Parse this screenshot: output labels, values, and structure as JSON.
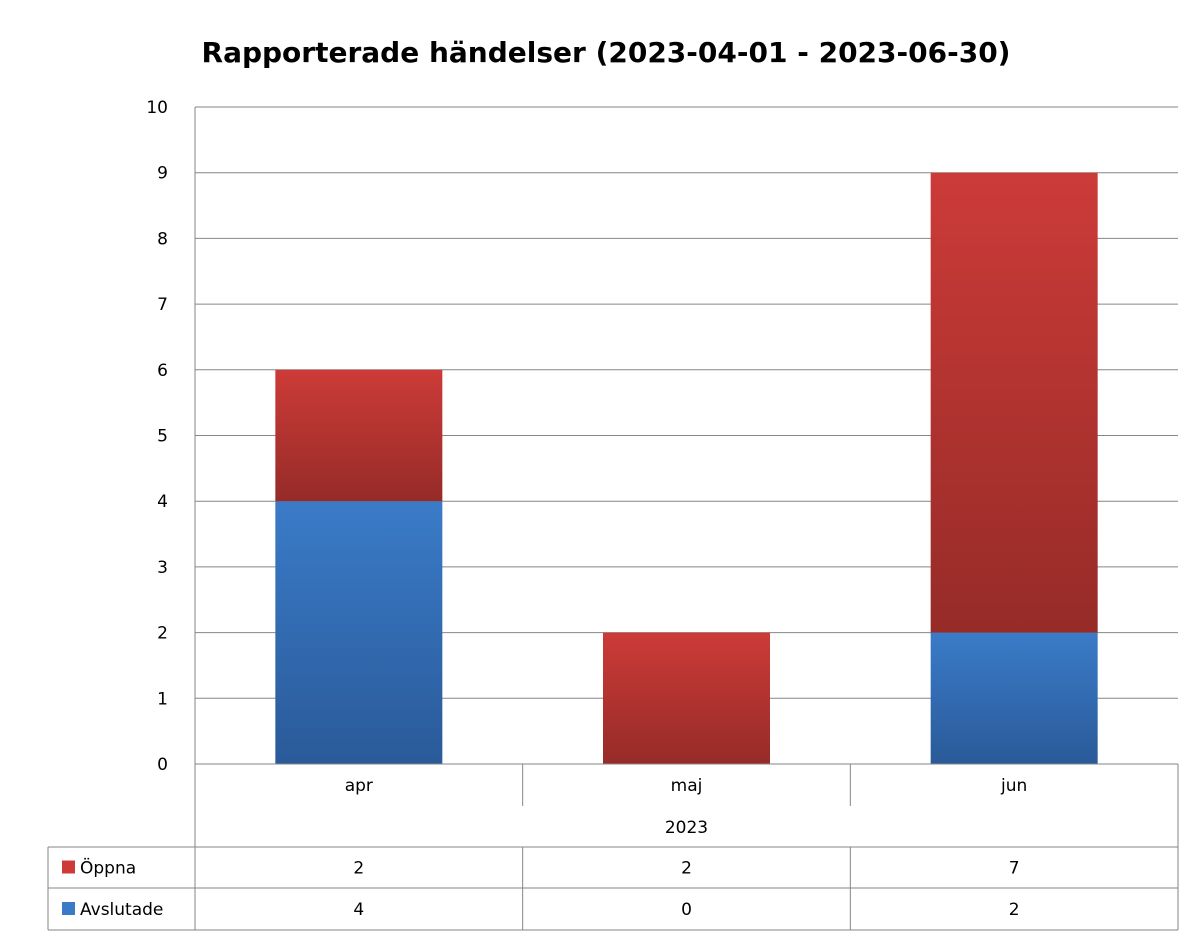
{
  "chart_data": {
    "type": "bar",
    "stacked": true,
    "title": "Rapporterade händelser (2023-04-01 - 2023-06-30)",
    "categories": [
      "apr",
      "maj",
      "jun"
    ],
    "category_group": "2023",
    "yticks": [
      "0",
      "1",
      "2",
      "3",
      "4",
      "5",
      "6",
      "7",
      "8",
      "9",
      "10"
    ],
    "ylim": [
      0,
      10
    ],
    "grid": true,
    "legend": "data table",
    "series": [
      {
        "name": "Avslutade",
        "values": [
          4,
          0,
          2
        ],
        "color": "#3a7bc8",
        "color_dark": "#2a5a99"
      },
      {
        "name": "Öppna",
        "values": [
          2,
          2,
          7
        ],
        "color": "#cc3b38",
        "color_dark": "#962b28"
      }
    ],
    "table_rows": [
      {
        "name": "Öppna",
        "values": [
          "2",
          "2",
          "7"
        ]
      },
      {
        "name": "Avslutade",
        "values": [
          "4",
          "0",
          "2"
        ]
      }
    ]
  }
}
